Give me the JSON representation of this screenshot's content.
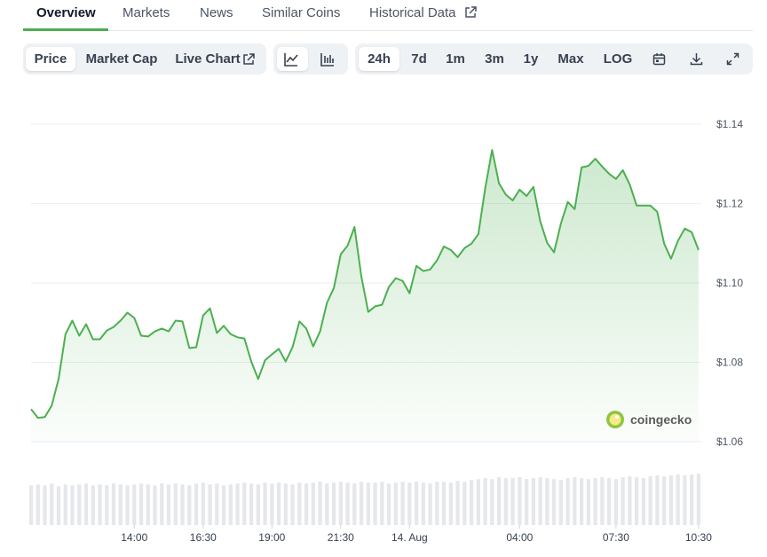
{
  "tabs": [
    "Overview",
    "Markets",
    "News",
    "Similar Coins",
    "Historical Data"
  ],
  "active_tab": 0,
  "chart_modes": [
    "Price",
    "Market Cap",
    "Live Chart"
  ],
  "active_mode": 0,
  "ranges": [
    "24h",
    "7d",
    "1m",
    "3m",
    "1y",
    "Max",
    "LOG"
  ],
  "active_range": 0,
  "watermark": "coingecko",
  "chart_data": {
    "type": "area",
    "color": "#4caf50",
    "volume_color": "#e5e7eb",
    "grid": true,
    "x": [
      10.25,
      10.5,
      10.75,
      11,
      11.25,
      11.5,
      11.75,
      12,
      12.25,
      12.5,
      12.75,
      13,
      13.25,
      13.5,
      13.75,
      14,
      14.25,
      14.5,
      14.75,
      15,
      15.25,
      15.5,
      15.75,
      16,
      16.25,
      16.5,
      16.75,
      17,
      17.25,
      17.5,
      17.75,
      18,
      18.25,
      18.5,
      18.75,
      19,
      19.25,
      19.5,
      19.75,
      20,
      20.25,
      20.5,
      20.75,
      21,
      21.25,
      21.5,
      21.75,
      22,
      22.25,
      22.5,
      22.75,
      23,
      23.25,
      23.5,
      23.75,
      24,
      24.25,
      24.5,
      24.75,
      25,
      25.25,
      25.5,
      25.75,
      26,
      26.25,
      26.5,
      26.75,
      27,
      27.25,
      27.5,
      27.75,
      28,
      28.25,
      28.5,
      28.75,
      29,
      29.25,
      29.5,
      29.75,
      30,
      30.25,
      30.5,
      30.75,
      31,
      31.25,
      31.5,
      31.75,
      32,
      32.25,
      32.5,
      32.75,
      33,
      33.25,
      33.5,
      33.75,
      34,
      34.25,
      34.5
    ],
    "values": [
      1.0682,
      1.066,
      1.0662,
      1.0691,
      1.0758,
      1.0871,
      1.0905,
      1.0867,
      1.0896,
      1.0858,
      1.0858,
      1.088,
      1.0889,
      1.0905,
      1.0925,
      1.0912,
      1.0867,
      1.0865,
      1.0878,
      1.0885,
      1.0878,
      1.0905,
      1.0903,
      1.0836,
      1.0838,
      1.0918,
      1.0936,
      1.0874,
      1.0892,
      1.0871,
      1.0863,
      1.086,
      1.0802,
      1.0758,
      1.0805,
      1.082,
      1.0834,
      1.0802,
      1.0838,
      1.0903,
      1.0885,
      1.084,
      1.0878,
      1.095,
      1.0987,
      1.1072,
      1.1094,
      1.1141,
      1.1016,
      1.0927,
      1.0941,
      1.0945,
      1.099,
      1.1012,
      1.1005,
      1.0974,
      1.1043,
      1.103,
      1.1034,
      1.1057,
      1.1092,
      1.1083,
      1.1065,
      1.1088,
      1.1099,
      1.1123,
      1.1239,
      1.1335,
      1.1251,
      1.1222,
      1.1208,
      1.1235,
      1.1219,
      1.1242,
      1.1155,
      1.1101,
      1.1077,
      1.115,
      1.1204,
      1.1186,
      1.1291,
      1.1295,
      1.1313,
      1.1293,
      1.1275,
      1.1262,
      1.1284,
      1.1248,
      1.1195,
      1.1195,
      1.1195,
      1.1179,
      1.1099,
      1.1061,
      1.1106,
      1.1137,
      1.1128,
      1.1083
    ],
    "volume": [
      44,
      45,
      44,
      46,
      43,
      45,
      44,
      45,
      46,
      44,
      45,
      44,
      46,
      45,
      44,
      45,
      46,
      45,
      44,
      46,
      45,
      46,
      45,
      44,
      46,
      47,
      45,
      46,
      44,
      45,
      46,
      47,
      46,
      45,
      47,
      46,
      47,
      46,
      45,
      47,
      46,
      47,
      48,
      46,
      47,
      48,
      47,
      46,
      48,
      47,
      47,
      48,
      46,
      47,
      48,
      47,
      48,
      47,
      46,
      48,
      48,
      47,
      49,
      48,
      50,
      51,
      52,
      51,
      53,
      52,
      52,
      53,
      51,
      52,
      53,
      52,
      51,
      50,
      52,
      53,
      52,
      51,
      52,
      53,
      52,
      51,
      53,
      54,
      53,
      52,
      54,
      55,
      54,
      55,
      56,
      55,
      56,
      57
    ],
    "xlim": [
      10.25,
      34.6
    ],
    "xticks": [
      {
        "value": 14,
        "label": "14:00"
      },
      {
        "value": 16.5,
        "label": "16:30"
      },
      {
        "value": 19,
        "label": "19:00"
      },
      {
        "value": 21.5,
        "label": "21:30"
      },
      {
        "value": 24,
        "label": "14. Aug"
      },
      {
        "value": 28,
        "label": "04:00"
      },
      {
        "value": 31.5,
        "label": "07:30"
      },
      {
        "value": 34.5,
        "label": "10:30"
      }
    ],
    "ylim": [
      1.06,
      1.14
    ],
    "yticks": [
      {
        "value": 1.06,
        "label": "$1.06"
      },
      {
        "value": 1.08,
        "label": "$1.08"
      },
      {
        "value": 1.1,
        "label": "$1.10"
      },
      {
        "value": 1.12,
        "label": "$1.12"
      },
      {
        "value": 1.14,
        "label": "$1.14"
      }
    ]
  }
}
